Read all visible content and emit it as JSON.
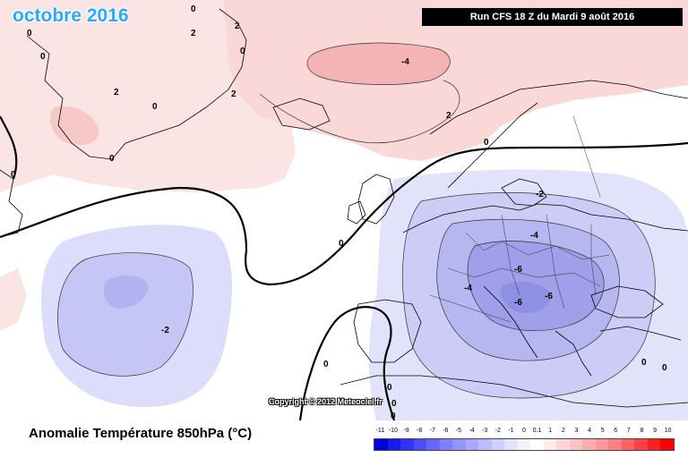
{
  "header": {
    "period": "octobre 2016",
    "run_info": "Run CFS 18 Z du Mardi 9 août 2016"
  },
  "map": {
    "copyright": "Copyright © 2012 Meteociel.fr",
    "contour_labels": [
      {
        "text": "0"
      },
      {
        "text": "0"
      },
      {
        "text": "0"
      },
      {
        "text": "0"
      },
      {
        "text": "0"
      },
      {
        "text": "2"
      },
      {
        "text": "2"
      },
      {
        "text": "2"
      },
      {
        "text": "2"
      },
      {
        "text": "0"
      },
      {
        "text": "0"
      },
      {
        "text": "-4"
      },
      {
        "text": "2"
      },
      {
        "text": "0"
      },
      {
        "text": "0"
      },
      {
        "text": "0"
      },
      {
        "text": "0"
      },
      {
        "text": "-2"
      },
      {
        "text": "-2"
      },
      {
        "text": "-4"
      },
      {
        "text": "-6"
      },
      {
        "text": "-4"
      },
      {
        "text": "-6"
      },
      {
        "text": "-6"
      },
      {
        "text": "0"
      },
      {
        "text": "0"
      },
      {
        "text": "0"
      },
      {
        "text": "0"
      }
    ]
  },
  "footer": {
    "title": "Anomalie Température 850hPa (°C)"
  },
  "legend": {
    "ticks": [
      "-11",
      "-10",
      "-9",
      "-8",
      "-7",
      "-6",
      "-5",
      "-4",
      "-3",
      "-2",
      "-1",
      "0",
      "0.1",
      "1",
      "2",
      "3",
      "4",
      "5",
      "6",
      "7",
      "8",
      "9",
      "10"
    ],
    "colors": [
      "#0000e0",
      "#1a1af0",
      "#3333ff",
      "#4d4dff",
      "#6666ff",
      "#7f7fff",
      "#9494ff",
      "#a8a8ff",
      "#bcbcff",
      "#d0d0ff",
      "#e2e2ff",
      "#f2f2ff",
      "#ffffff",
      "#ffeaea",
      "#ffd6d6",
      "#ffc2c2",
      "#ffadad",
      "#ff9898",
      "#ff8080",
      "#ff6060",
      "#ff4040",
      "#ff2020",
      "#ff0000"
    ]
  }
}
